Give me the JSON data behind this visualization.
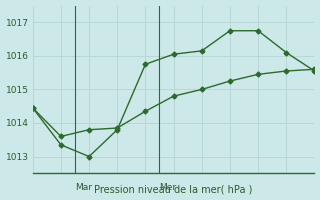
{
  "bg_color": "#cce8e8",
  "line_color": "#2d6a2d",
  "grid_color": "#b8d8d8",
  "xlabel": "Pression niveau de la mer( hPa )",
  "xlabel_color": "#2d5a2d",
  "tick_color": "#2d5a2d",
  "ylim": [
    1012.5,
    1017.5
  ],
  "xlim": [
    0,
    10
  ],
  "series1_x": [
    0,
    1,
    2,
    3,
    4,
    5,
    6,
    7,
    8,
    9,
    10
  ],
  "series1_y": [
    1014.45,
    1013.35,
    1013.0,
    1013.8,
    1015.75,
    1016.05,
    1016.15,
    1016.75,
    1016.75,
    1016.1,
    1015.55
  ],
  "series2_x": [
    0,
    1,
    2,
    3,
    4,
    5,
    6,
    7,
    8,
    9,
    10
  ],
  "series2_y": [
    1014.45,
    1013.6,
    1013.8,
    1013.85,
    1014.35,
    1014.8,
    1015.0,
    1015.25,
    1015.45,
    1015.55,
    1015.6
  ],
  "yticks": [
    1013,
    1014,
    1015,
    1016,
    1017
  ],
  "vline1_x": 1.5,
  "vline2_x": 4.5,
  "day1_label": "Mar",
  "day2_label": "Mer",
  "marker": "D",
  "markersize": 2.5,
  "linewidth": 1.0
}
